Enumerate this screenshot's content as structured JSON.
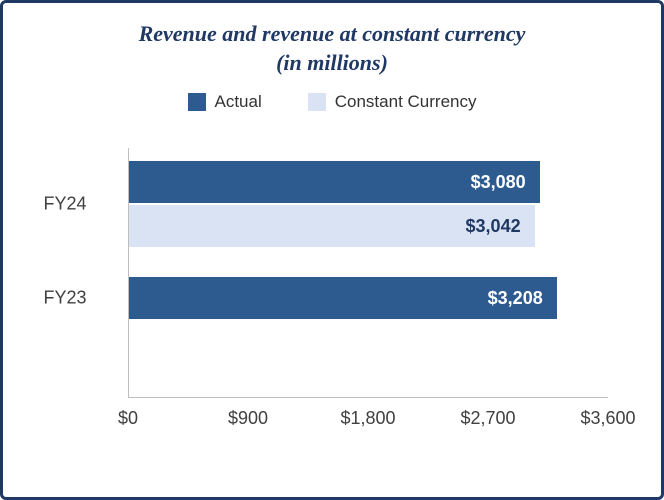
{
  "frame": {
    "border_color": "#1F3864",
    "background": "#FFFFFF"
  },
  "chart_data": {
    "type": "bar",
    "orientation": "horizontal",
    "title": "Revenue and revenue at constant currency",
    "subtitle": "(in millions)",
    "categories": [
      "FY24",
      "FY23"
    ],
    "series": [
      {
        "name": "Actual",
        "color": "#2E5B8F",
        "label_color": "#FFFFFF",
        "values": [
          3080,
          3208
        ],
        "labels": [
          "$3,080",
          "$3,208"
        ]
      },
      {
        "name": "Constant Currency",
        "color": "#DAE3F3",
        "label_color": "#1F3864",
        "values": [
          3042,
          null
        ],
        "labels": [
          "$3,042",
          null
        ]
      }
    ],
    "xlim": [
      0,
      3600
    ],
    "x_ticks": [
      {
        "value": 0,
        "label": "$0"
      },
      {
        "value": 900,
        "label": "$900"
      },
      {
        "value": 1800,
        "label": "$1,800"
      },
      {
        "value": 2700,
        "label": "$2,700"
      },
      {
        "value": 3600,
        "label": "$3,600"
      }
    ],
    "legend_position": "top",
    "grid": false
  }
}
